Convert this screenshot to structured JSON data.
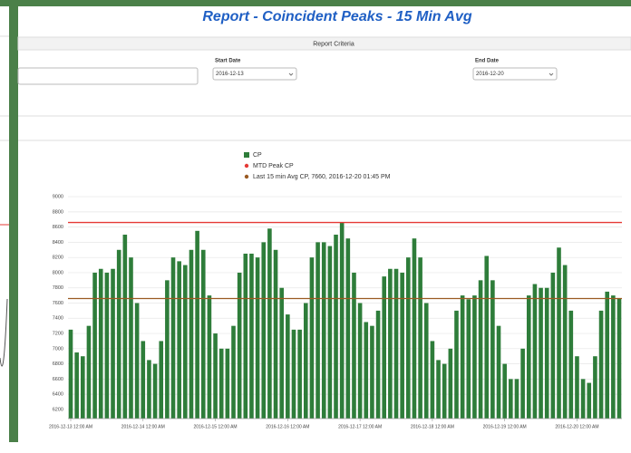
{
  "header": {
    "title": "Report - Coincident Peaks - 15 Min Avg"
  },
  "criteria": {
    "heading": "Report Criteria",
    "start_label": "Start Date",
    "start_value": "2016-12-13",
    "end_label": "End Date",
    "end_value": "2016-12-20"
  },
  "chart_data": {
    "type": "bar",
    "categories": [
      "2016-12-13 12:00 AM",
      null,
      null,
      null,
      null,
      null,
      null,
      null,
      null,
      null,
      null,
      null,
      "2016-12-14 12:00 AM",
      null,
      null,
      null,
      null,
      null,
      null,
      null,
      null,
      null,
      null,
      null,
      "2016-12-15 12:00 AM",
      null,
      null,
      null,
      null,
      null,
      null,
      null,
      null,
      null,
      null,
      null,
      "2016-12-16 12:00 AM",
      null,
      null,
      null,
      null,
      null,
      null,
      null,
      null,
      null,
      null,
      null,
      "2016-12-17 12:00 AM",
      null,
      null,
      null,
      null,
      null,
      null,
      null,
      null,
      null,
      null,
      null,
      "2016-12-18 12:00 AM",
      null,
      null,
      null,
      null,
      null,
      null,
      null,
      null,
      null,
      null,
      null,
      "2016-12-19 12:00 AM",
      null,
      null,
      null,
      null,
      null,
      null,
      null,
      null,
      null,
      null,
      null,
      "2016-12-20 12:00 AM",
      null,
      null,
      null,
      null,
      null,
      null,
      null
    ],
    "series": [
      {
        "name": "CP",
        "color": "#2e7d3a",
        "values": [
          7250,
          6950,
          6900,
          7300,
          8000,
          8050,
          8000,
          8050,
          8300,
          8500,
          8200,
          7600,
          7100,
          6850,
          6800,
          7100,
          7900,
          8200,
          8150,
          8100,
          8300,
          8550,
          8300,
          7700,
          7200,
          7000,
          7000,
          7300,
          8000,
          8250,
          8250,
          8200,
          8400,
          8580,
          8300,
          7800,
          7450,
          7250,
          7250,
          7600,
          8200,
          8400,
          8400,
          8350,
          8500,
          8660,
          8450,
          8000,
          7600,
          7350,
          7300,
          7500,
          7950,
          8050,
          8050,
          8000,
          8200,
          8450,
          8200,
          7600,
          7100,
          6850,
          6800,
          7000,
          7500,
          7700,
          7650,
          7700,
          7900,
          8220,
          7900,
          7300,
          6800,
          6600,
          6600,
          7000,
          7700,
          7850,
          7800,
          7800,
          8000,
          8330,
          8100,
          7500,
          6900,
          6600,
          6550,
          6900,
          7500,
          7750,
          7700,
          7660
        ]
      }
    ],
    "reference_lines": [
      {
        "name": "MTD Peak CP",
        "color": "#e53935",
        "value": 8660
      },
      {
        "name": "Last 15 min Avg CP, 7660, 2016-12-20 01:45 PM",
        "color": "#9a5a22",
        "value": 7660
      }
    ],
    "ylim": [
      6080,
      9120
    ],
    "yticks": [
      6200,
      6400,
      6600,
      6800,
      7000,
      7200,
      7400,
      7600,
      7800,
      8000,
      8200,
      8400,
      8600,
      8800,
      9000
    ],
    "grid": true
  }
}
